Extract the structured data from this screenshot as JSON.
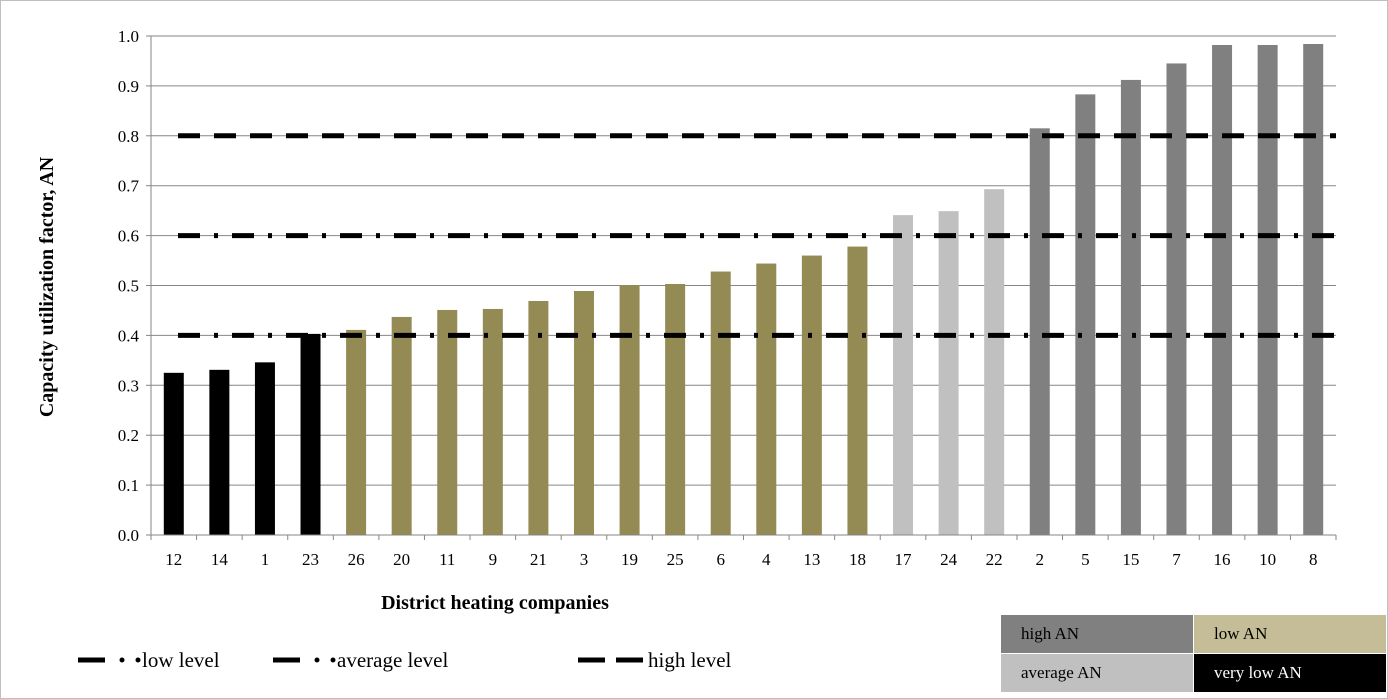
{
  "chart_data": {
    "type": "bar",
    "ylabel": "Capacity utilization factor, AN",
    "xlabel": "District heating companies",
    "ylim": [
      0,
      1.0
    ],
    "yticks": [
      "0.0",
      "0.1",
      "0.2",
      "0.3",
      "0.4",
      "0.5",
      "0.6",
      "0.7",
      "0.8",
      "0.9",
      "1.0"
    ],
    "grid": true,
    "categories": [
      "12",
      "14",
      "1",
      "23",
      "26",
      "20",
      "11",
      "9",
      "21",
      "3",
      "19",
      "25",
      "6",
      "4",
      "13",
      "18",
      "17",
      "24",
      "22",
      "2",
      "5",
      "15",
      "7",
      "16",
      "10",
      "8"
    ],
    "values": [
      0.325,
      0.331,
      0.346,
      0.403,
      0.411,
      0.437,
      0.451,
      0.453,
      0.469,
      0.489,
      0.501,
      0.503,
      0.528,
      0.544,
      0.56,
      0.578,
      0.641,
      0.649,
      0.693,
      0.815,
      0.883,
      0.912,
      0.945,
      0.982,
      0.982,
      0.984
    ],
    "bar_class": [
      "very_low",
      "very_low",
      "very_low",
      "very_low",
      "low",
      "low",
      "low",
      "low",
      "low",
      "low",
      "low",
      "low",
      "low",
      "low",
      "low",
      "low",
      "average",
      "average",
      "average",
      "high",
      "high",
      "high",
      "high",
      "high",
      "high",
      "high"
    ],
    "reference_lines": [
      {
        "name": "low level",
        "value": 0.4,
        "style": "dash-dot-dot"
      },
      {
        "name": "average level",
        "value": 0.6,
        "style": "dash-dot-dot"
      },
      {
        "name": "high level",
        "value": 0.8,
        "style": "dash"
      }
    ],
    "classes": {
      "high": {
        "label": "high AN",
        "color": "#808080"
      },
      "low": {
        "label": "low AN",
        "color": "#948a54"
      },
      "average": {
        "label": "average AN",
        "color": "#c0c0c0"
      },
      "very_low": {
        "label": "very low  AN",
        "color": "#000000"
      }
    },
    "legend_box_colors": {
      "low": "#c4bd97"
    }
  }
}
